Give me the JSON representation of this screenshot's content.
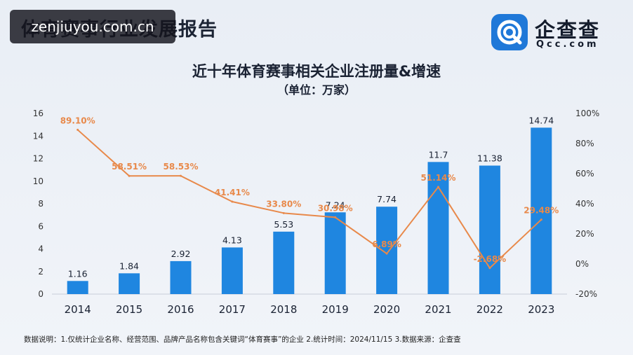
{
  "header": {
    "report_title": "体育赛事行业发展报告",
    "watermark": "zenjiuyou.com.cn"
  },
  "logo": {
    "name": "企查查",
    "domain": "Qcc.com",
    "brand_color": "#1f78d8"
  },
  "chart_data": {
    "type": "bar",
    "title": "近十年体育赛事相关企业注册量&增速",
    "subtitle": "（单位：万家）",
    "categories": [
      "2014",
      "2015",
      "2016",
      "2017",
      "2018",
      "2019",
      "2020",
      "2021",
      "2022",
      "2023"
    ],
    "series": [
      {
        "type": "bar",
        "axis": "left",
        "color": "#1f86e0",
        "values": [
          1.16,
          1.84,
          2.92,
          4.13,
          5.53,
          7.24,
          7.74,
          11.7,
          11.38,
          14.74
        ],
        "labels": [
          "1.16",
          "1.84",
          "2.92",
          "4.13",
          "5.53",
          "7.24",
          "7.74",
          "11.7",
          "11.38",
          "14.74"
        ]
      },
      {
        "type": "line",
        "axis": "right",
        "color": "#e8894a",
        "values": [
          89.1,
          58.51,
          58.53,
          41.41,
          33.8,
          30.98,
          6.89,
          51.14,
          -2.68,
          29.48
        ],
        "labels": [
          "89.10%",
          "58.51%",
          "58.53%",
          "41.41%",
          "33.80%",
          "30.98%",
          "6.89%",
          "51.14%",
          "-2.68%",
          "29.48%"
        ]
      }
    ],
    "ylim_left": [
      0,
      16
    ],
    "yticks_left": [
      "0",
      "2",
      "4",
      "6",
      "8",
      "10",
      "12",
      "14",
      "16"
    ],
    "ylim_right": [
      -20,
      100
    ],
    "yticks_right": [
      "-20%",
      "0%",
      "20%",
      "40%",
      "60%",
      "80%",
      "100%"
    ],
    "grid": false,
    "legend": "none"
  },
  "footnote": "数据说明：1.仅统计企业名称、经营范围、品牌产品名称包含关键词“体育赛事”的企业  2.统计时间：2024/11/15  3.数据来源：企查查"
}
